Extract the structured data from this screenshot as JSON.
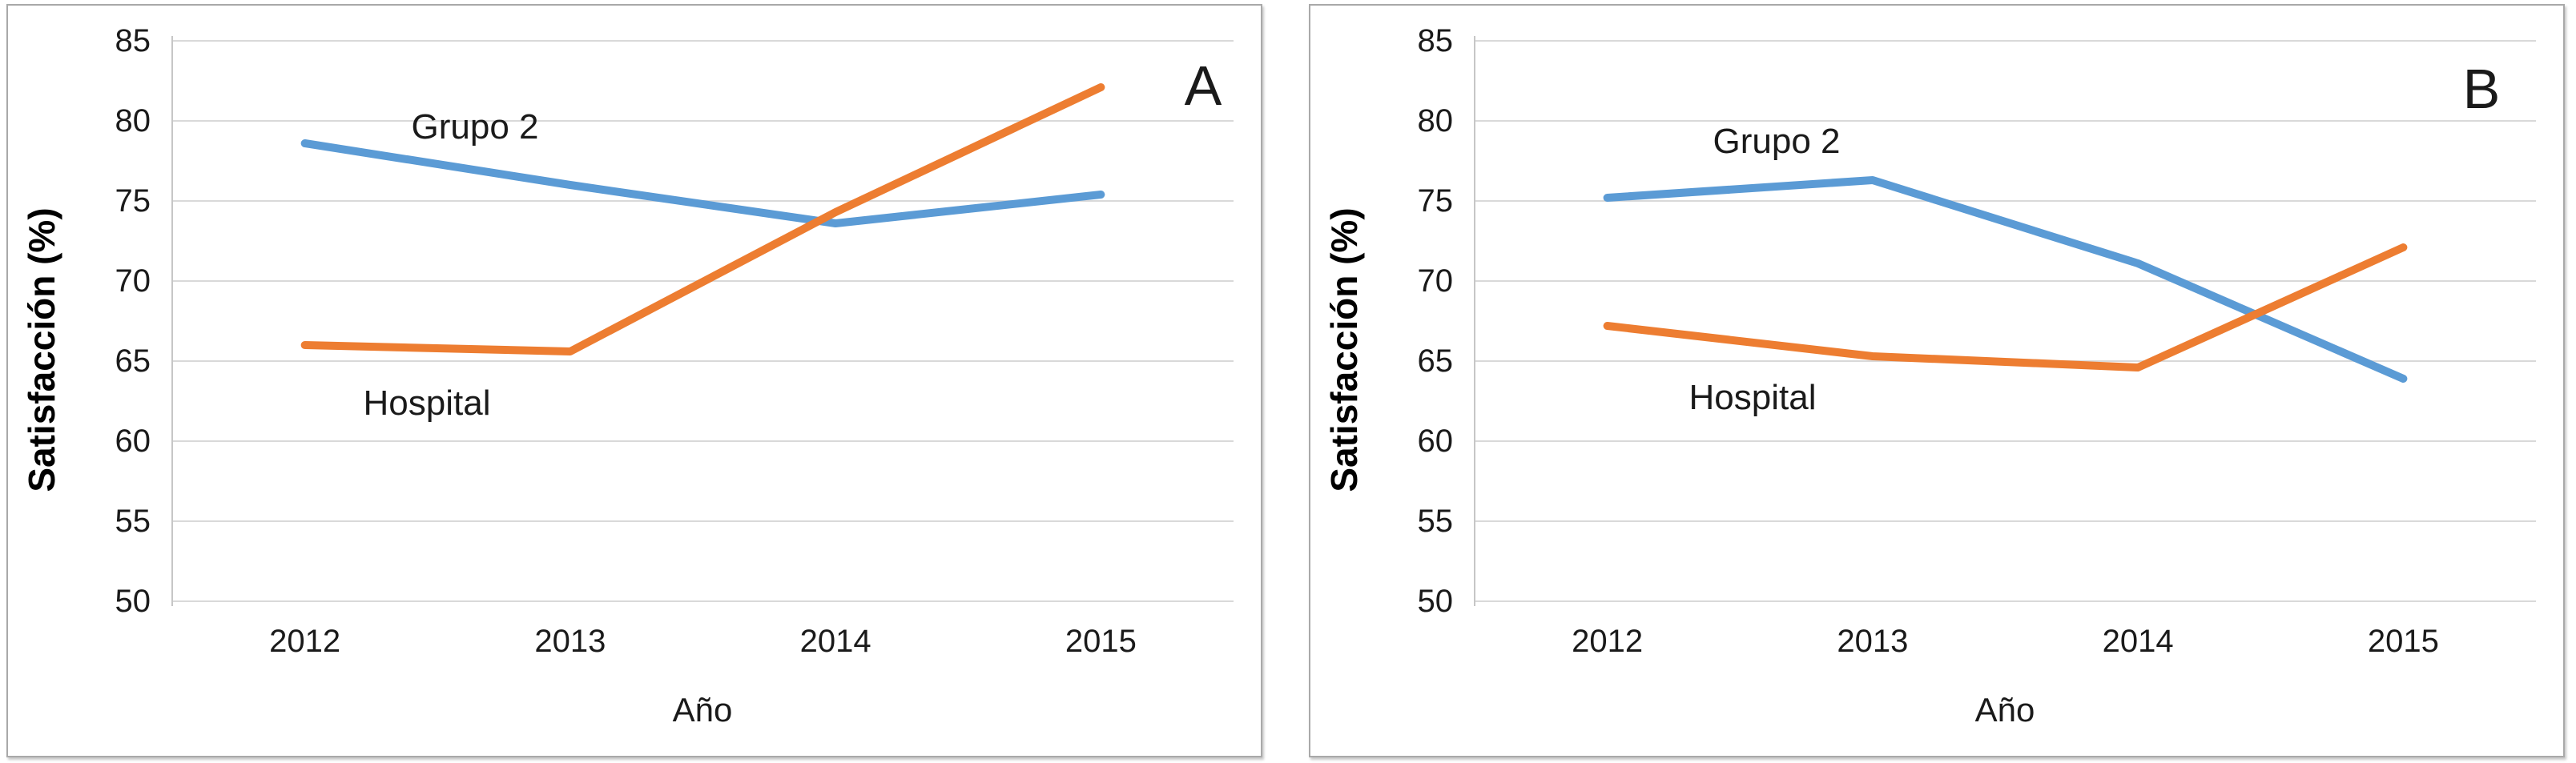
{
  "colors": {
    "grid": "#d9d9d9",
    "axis": "#c6c6c6",
    "panel_border": "#a9a9a9",
    "blue_series": "#5B9BD5",
    "orange_series": "#ED7D31",
    "text": "#1a1a1a"
  },
  "chart_data": [
    {
      "type": "line",
      "panel_label": "A",
      "ylabel": "Satisfacción (%)",
      "xlabel": "Año",
      "categories": [
        "2012",
        "2013",
        "2014",
        "2015"
      ],
      "y_ticks": [
        85,
        80,
        75,
        70,
        65,
        60,
        55,
        50
      ],
      "ylim": [
        50,
        85
      ],
      "grid": "horizontal-only",
      "legend": "inline-series-labels",
      "series": [
        {
          "name": "Grupo 2",
          "color": "#5B9BD5",
          "values": [
            78.6,
            76.0,
            73.6,
            75.4
          ]
        },
        {
          "name": "Hospital",
          "color": "#ED7D31",
          "values": [
            66.0,
            65.6,
            74.3,
            82.1
          ]
        }
      ],
      "series_label_positions": [
        {
          "x": 583,
          "y": 152
        },
        {
          "x": 523,
          "y": 497
        }
      ],
      "panel_label_pos": {
        "x": 1492,
        "y": 100
      }
    },
    {
      "type": "line",
      "panel_label": "B",
      "ylabel": "Satisfacción (%)",
      "xlabel": "Año",
      "categories": [
        "2012",
        "2013",
        "2014",
        "2015"
      ],
      "y_ticks": [
        85,
        80,
        75,
        70,
        65,
        60,
        55,
        50
      ],
      "ylim": [
        50,
        85
      ],
      "grid": "horizontal-only",
      "legend": "inline-series-labels",
      "series": [
        {
          "name": "Grupo 2",
          "color": "#5B9BD5",
          "values": [
            75.2,
            76.3,
            71.1,
            63.9
          ]
        },
        {
          "name": "Hospital",
          "color": "#ED7D31",
          "values": [
            67.2,
            65.3,
            64.6,
            72.1
          ]
        }
      ],
      "series_label_positions": [
        {
          "x": 582,
          "y": 170
        },
        {
          "x": 552,
          "y": 490
        }
      ],
      "panel_label_pos": {
        "x": 1462,
        "y": 104
      }
    }
  ]
}
